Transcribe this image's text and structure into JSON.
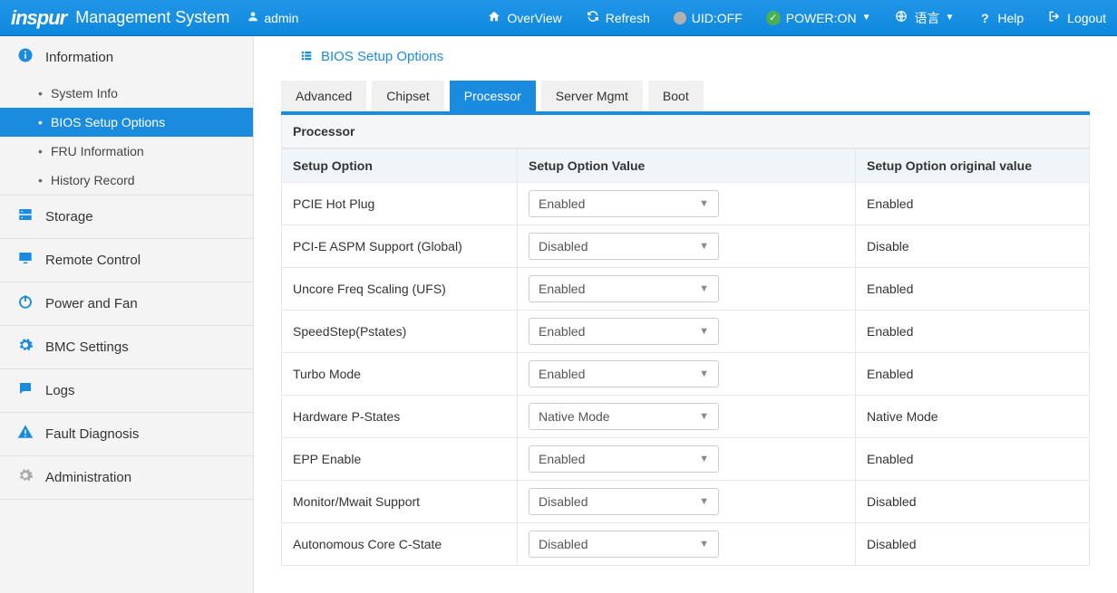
{
  "topbar": {
    "brand_logo": "inspur",
    "brand_title": "Management System",
    "user": "admin",
    "links": {
      "overview": "OverView",
      "refresh": "Refresh",
      "uid": "UID:OFF",
      "power": "POWER:ON",
      "language": "语言",
      "help": "Help",
      "logout": "Logout"
    }
  },
  "sidebar": {
    "information": {
      "label": "Information",
      "items": [
        {
          "label": "System Info"
        },
        {
          "label": "BIOS Setup Options",
          "active": true
        },
        {
          "label": "FRU Information"
        },
        {
          "label": "History Record"
        }
      ]
    },
    "storage": "Storage",
    "remote": "Remote Control",
    "power": "Power and Fan",
    "bmc": "BMC Settings",
    "logs": "Logs",
    "fault": "Fault Diagnosis",
    "admin": "Administration"
  },
  "page": {
    "title": "BIOS Setup Options",
    "tabs": [
      "Advanced",
      "Chipset",
      "Processor",
      "Server Mgmt",
      "Boot"
    ],
    "active_tab": 2,
    "section": "Processor",
    "columns": [
      "Setup Option",
      "Setup Option Value",
      "Setup Option original value"
    ],
    "rows": [
      {
        "name": "PCIE Hot Plug",
        "value": "Enabled",
        "orig": "Enabled"
      },
      {
        "name": "PCI-E ASPM Support (Global)",
        "value": "Disabled",
        "orig": "Disable"
      },
      {
        "name": "Uncore Freq Scaling (UFS)",
        "value": "Enabled",
        "orig": "Enabled"
      },
      {
        "name": "SpeedStep(Pstates)",
        "value": "Enabled",
        "orig": "Enabled"
      },
      {
        "name": "Turbo Mode",
        "value": "Enabled",
        "orig": "Enabled"
      },
      {
        "name": "Hardware P-States",
        "value": "Native Mode",
        "orig": "Native Mode"
      },
      {
        "name": "EPP Enable",
        "value": "Enabled",
        "orig": "Enabled"
      },
      {
        "name": "Monitor/Mwait Support",
        "value": "Disabled",
        "orig": "Disabled"
      },
      {
        "name": "Autonomous Core C-State",
        "value": "Disabled",
        "orig": "Disabled"
      }
    ]
  },
  "colors": {
    "primary": "#1b8be0",
    "sidebar_bg": "#f4f4f4",
    "border": "#e5e8ea"
  }
}
